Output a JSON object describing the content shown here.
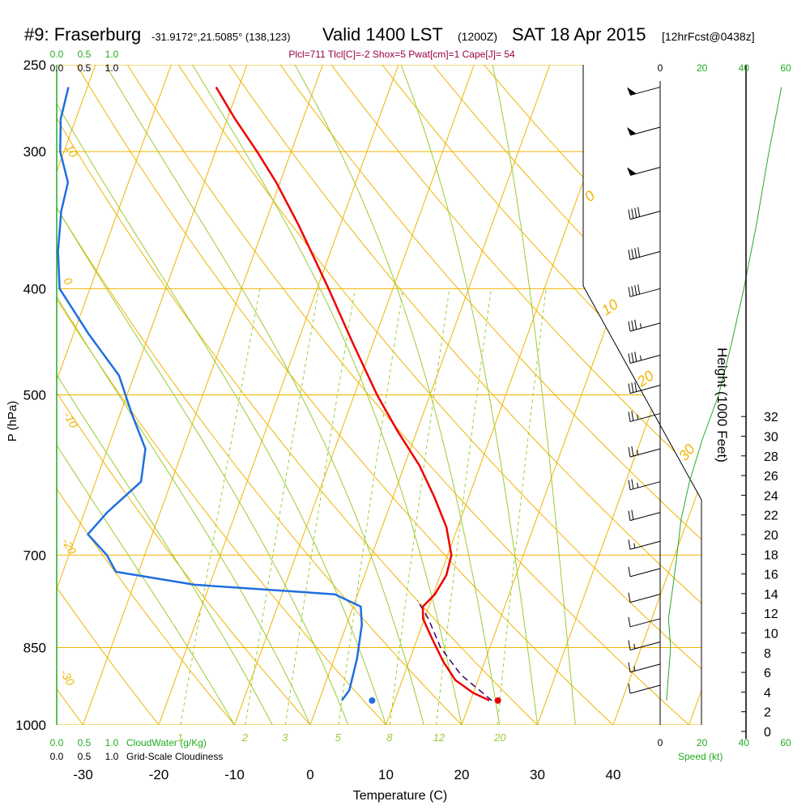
{
  "chart_data": {
    "type": "line",
    "subtype": "skew-T log-P sounding",
    "title": {
      "station": "#9: Fraserburg",
      "coords": "-31.9172°,21.5085° (138,123)",
      "valid": "Valid 1400 LST",
      "utc": "(1200Z)",
      "date": "SAT 18 Apr 2015",
      "forecast": "[12hrFcst@0438z]"
    },
    "indices": "Plcl=711 Tlcl[C]=-2 Shox=5 Pwat[cm]=1 Cape[J]= 54",
    "ylabel": "P (hPa)",
    "xlabel": "Temperature (C)",
    "height_label": "Height (1000 Feet)",
    "pressure_ticks": [
      "250",
      "300",
      "400",
      "500",
      "700",
      "850",
      "1000"
    ],
    "temp_ticks": [
      "-30",
      "-20",
      "-10",
      "0",
      "10",
      "20",
      "30",
      "40"
    ],
    "height_ticks": [
      "0",
      "2",
      "4",
      "6",
      "8",
      "10",
      "12",
      "14",
      "16",
      "18",
      "20",
      "22",
      "24",
      "26",
      "28",
      "30",
      "32"
    ],
    "cloud_water_ticks": [
      "0.0",
      "0.5",
      "1.0"
    ],
    "cloudiness_ticks": [
      "0.0",
      "0.5",
      "1.0"
    ],
    "cloud_water_label": "CloudWater (g/Kg)",
    "cloudiness_label": "Grid-Scale Cloudiness",
    "speed_ticks": [
      "0",
      "20",
      "40",
      "60"
    ],
    "speed_label": "Speed (kt)",
    "isotherm_labels": [
      "10",
      "0",
      "-10",
      "-20",
      "-30"
    ],
    "dry_adiabat_labels": [
      "0",
      "10",
      "20",
      "30"
    ],
    "mixing_ratio_labels": [
      "1",
      "2",
      "3",
      "5",
      "8",
      "12",
      "20"
    ],
    "xlim": [
      -35,
      50
    ],
    "ylim_hpa": [
      1000,
      250
    ],
    "temperature_c": [
      {
        "p": 950,
        "t": 22.5
      },
      {
        "p": 935,
        "t": 20.0
      },
      {
        "p": 910,
        "t": 17.0
      },
      {
        "p": 875,
        "t": 14.5
      },
      {
        "p": 835,
        "t": 12.0
      },
      {
        "p": 800,
        "t": 9.8
      },
      {
        "p": 780,
        "t": 9.2
      },
      {
        "p": 760,
        "t": 10.2
      },
      {
        "p": 730,
        "t": 10.8
      },
      {
        "p": 700,
        "t": 10.5
      },
      {
        "p": 660,
        "t": 8.5
      },
      {
        "p": 620,
        "t": 5.5
      },
      {
        "p": 580,
        "t": 2.0
      },
      {
        "p": 540,
        "t": -2.5
      },
      {
        "p": 500,
        "t": -7.0
      },
      {
        "p": 450,
        "t": -12.5
      },
      {
        "p": 400,
        "t": -18.5
      },
      {
        "p": 350,
        "t": -25.5
      },
      {
        "p": 320,
        "t": -30.5
      },
      {
        "p": 300,
        "t": -34.5
      },
      {
        "p": 280,
        "t": -39.0
      },
      {
        "p": 262,
        "t": -43.0
      }
    ],
    "dewpoint_c": [
      {
        "p": 950,
        "t": 3.0
      },
      {
        "p": 930,
        "t": 3.5
      },
      {
        "p": 870,
        "t": 3.0
      },
      {
        "p": 810,
        "t": 2.0
      },
      {
        "p": 780,
        "t": 1.0
      },
      {
        "p": 760,
        "t": -3.0
      },
      {
        "p": 745,
        "t": -22.0
      },
      {
        "p": 725,
        "t": -33.0
      },
      {
        "p": 700,
        "t": -35.0
      },
      {
        "p": 670,
        "t": -38.5
      },
      {
        "p": 640,
        "t": -37.0
      },
      {
        "p": 600,
        "t": -34.0
      },
      {
        "p": 560,
        "t": -35.0
      },
      {
        "p": 520,
        "t": -38.5
      },
      {
        "p": 480,
        "t": -42.0
      },
      {
        "p": 440,
        "t": -48.0
      },
      {
        "p": 400,
        "t": -54.0
      },
      {
        "p": 370,
        "t": -56.0
      },
      {
        "p": 340,
        "t": -57.5
      },
      {
        "p": 320,
        "t": -58.0
      },
      {
        "p": 300,
        "t": -60.5
      },
      {
        "p": 280,
        "t": -62.0
      },
      {
        "p": 262,
        "t": -62.5
      }
    ],
    "parcel_c": [
      {
        "p": 950,
        "t": 22.8
      },
      {
        "p": 900,
        "t": 17.5
      },
      {
        "p": 850,
        "t": 13.5
      },
      {
        "p": 800,
        "t": 10.5
      },
      {
        "p": 770,
        "t": 8.2
      }
    ],
    "surface": {
      "p": 950,
      "t": 23.6,
      "td": 7.0
    },
    "wind_barbs": [
      {
        "p": 262,
        "speed_kt": 50
      },
      {
        "p": 285,
        "speed_kt": 50
      },
      {
        "p": 310,
        "speed_kt": 50
      },
      {
        "p": 340,
        "speed_kt": 40
      },
      {
        "p": 370,
        "speed_kt": 40
      },
      {
        "p": 400,
        "speed_kt": 40
      },
      {
        "p": 430,
        "speed_kt": 35
      },
      {
        "p": 460,
        "speed_kt": 35
      },
      {
        "p": 490,
        "speed_kt": 30
      },
      {
        "p": 520,
        "speed_kt": 25
      },
      {
        "p": 560,
        "speed_kt": 25
      },
      {
        "p": 600,
        "speed_kt": 25
      },
      {
        "p": 640,
        "speed_kt": 20
      },
      {
        "p": 680,
        "speed_kt": 15
      },
      {
        "p": 720,
        "speed_kt": 10
      },
      {
        "p": 760,
        "speed_kt": 10
      },
      {
        "p": 800,
        "speed_kt": 10
      },
      {
        "p": 840,
        "speed_kt": 15
      },
      {
        "p": 880,
        "speed_kt": 15
      },
      {
        "p": 920,
        "speed_kt": 10
      }
    ],
    "wind_speed_profile": [
      {
        "p": 950,
        "speed_kt": 3
      },
      {
        "p": 900,
        "speed_kt": 4
      },
      {
        "p": 850,
        "speed_kt": 5
      },
      {
        "p": 800,
        "speed_kt": 4
      },
      {
        "p": 750,
        "speed_kt": 6
      },
      {
        "p": 700,
        "speed_kt": 8
      },
      {
        "p": 650,
        "speed_kt": 10
      },
      {
        "p": 600,
        "speed_kt": 14
      },
      {
        "p": 550,
        "speed_kt": 20
      },
      {
        "p": 500,
        "speed_kt": 28
      },
      {
        "p": 450,
        "speed_kt": 34
      },
      {
        "p": 400,
        "speed_kt": 40
      },
      {
        "p": 350,
        "speed_kt": 46
      },
      {
        "p": 300,
        "speed_kt": 52
      },
      {
        "p": 262,
        "speed_kt": 58
      }
    ],
    "colors": {
      "isobar": "#f0b400",
      "isotherm": "#f0b400",
      "dry_adiabat": "#f0b400",
      "moist_adiabat": "#99cc33",
      "mixing_ratio": "#99cc33",
      "temperature": "#ee0000",
      "dewpoint": "#1e6fe0",
      "parcel": "#330066",
      "cloud": "#22aa22",
      "title_indices": "#990044"
    }
  }
}
